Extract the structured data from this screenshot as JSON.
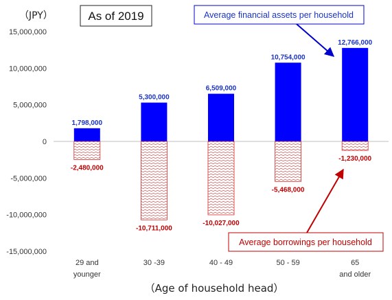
{
  "chart_data": {
    "type": "bar",
    "unit_label": "（JPY）",
    "as_of": "As of 2019",
    "xlabel": "（Age of household head）",
    "categories": [
      [
        "29 and",
        "younger"
      ],
      [
        "30 -39"
      ],
      [
        "40 - 49"
      ],
      [
        "50 - 59"
      ],
      [
        "65",
        "and older"
      ]
    ],
    "ylim": [
      -15000000,
      15000000
    ],
    "yticks": [
      {
        "value": 15000000,
        "label": "15,000,000"
      },
      {
        "value": 10000000,
        "label": "10,000,000"
      },
      {
        "value": 5000000,
        "label": "5,000,000"
      },
      {
        "value": 0,
        "label": "0"
      },
      {
        "value": -5000000,
        "label": "-5,000,000"
      },
      {
        "value": -10000000,
        "label": "-10,000,000"
      },
      {
        "value": -15000000,
        "label": "-15,000,000"
      }
    ],
    "series": [
      {
        "name": "Average financial assets per household",
        "color": "#0000ff",
        "values": [
          1798000,
          5300000,
          6509000,
          10754000,
          12766000
        ],
        "labels": [
          "1,798,000",
          "5,300,000",
          "6,509,000",
          "10,754,000",
          "12,766,000"
        ]
      },
      {
        "name": "Average borrowings per household",
        "color": "#d42a2a",
        "values": [
          -2480000,
          -10711000,
          -10027000,
          -5468000,
          -1230000
        ],
        "labels": [
          "-2,480,000",
          "-10,711,000",
          "-10,027,000",
          "-5,468,000",
          "-1,230,000"
        ]
      }
    ],
    "grid": false,
    "legend": "callout boxes"
  }
}
